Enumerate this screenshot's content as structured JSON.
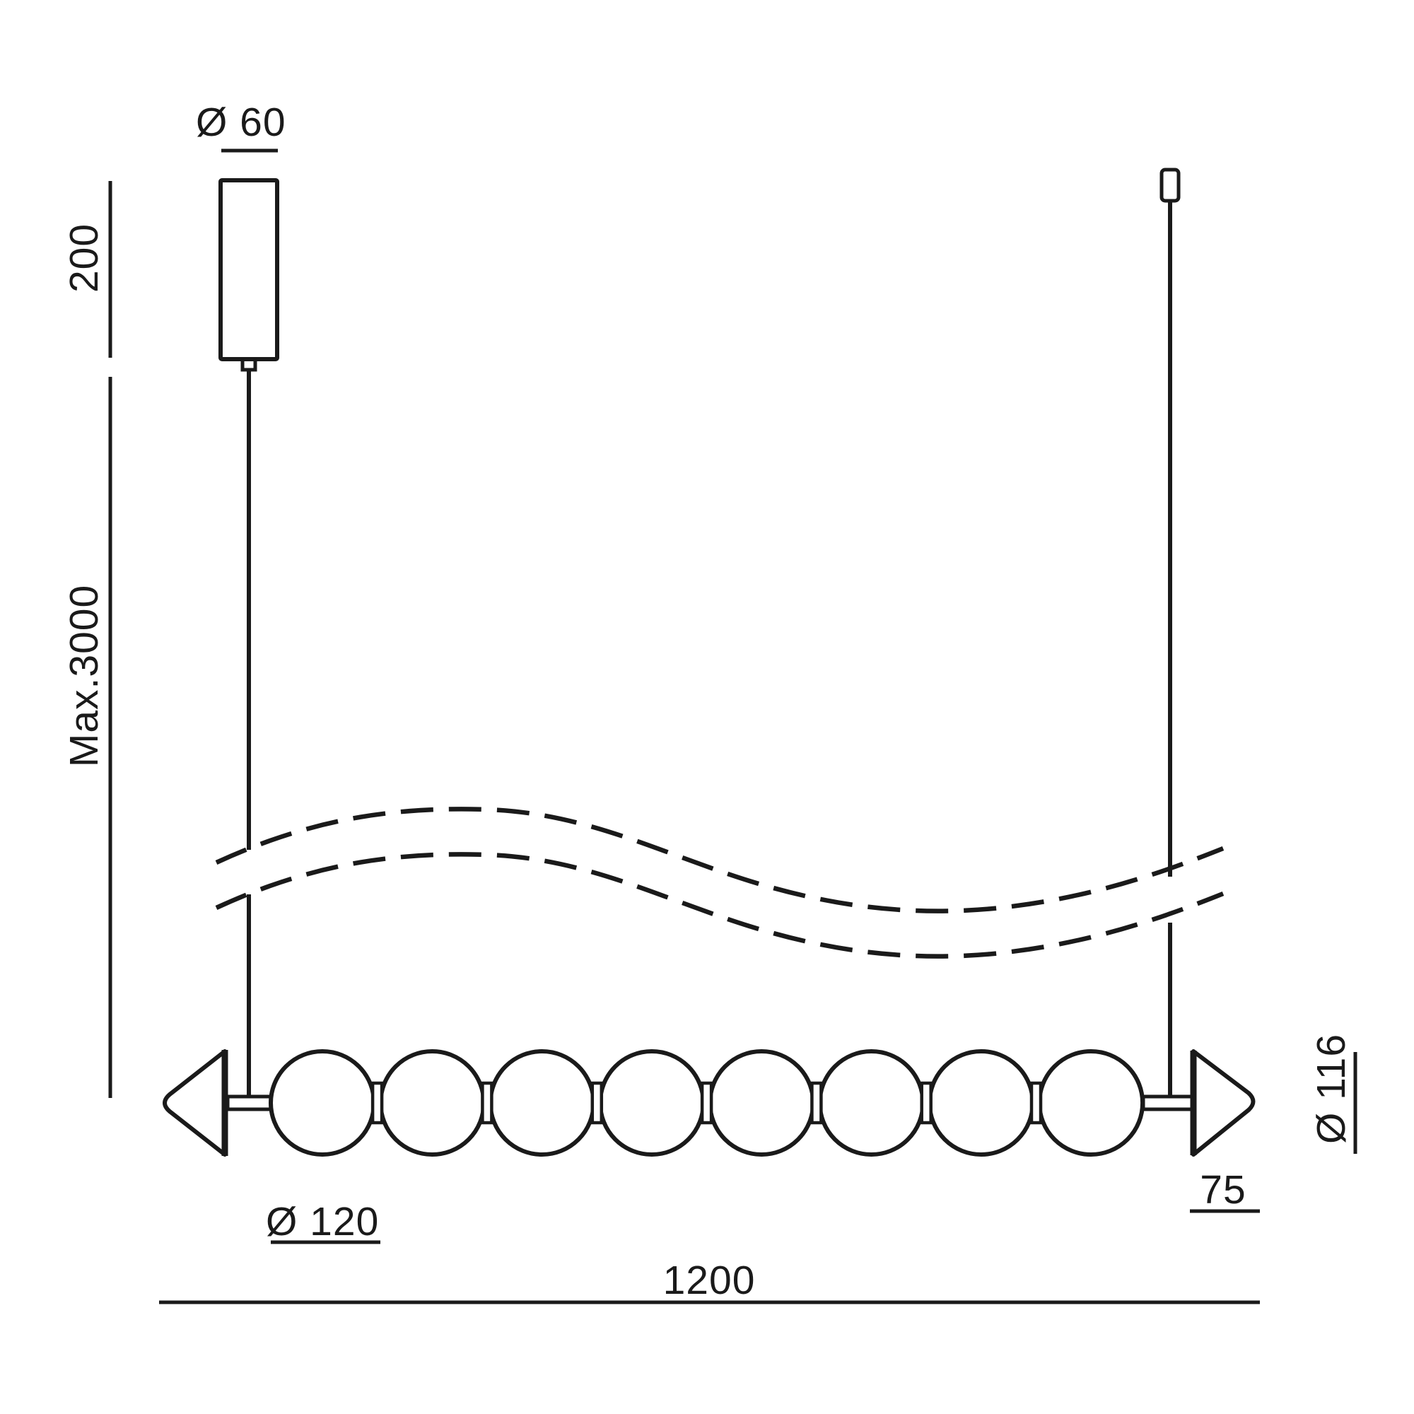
{
  "meta": {
    "drawing_type": "pendant-lamp-dimension-diagram",
    "background_color": "#ffffff",
    "line_color": "#1a1a1a"
  },
  "dimensions": {
    "canopy_diameter": "Ø 60",
    "canopy_height": "200",
    "max_suspension": "Max.3000",
    "sphere_diameter": "Ø 120",
    "total_length": "1200",
    "cone_length": "75",
    "cone_diameter": "Ø 116"
  },
  "structure": {
    "sphere_count": 8,
    "connector_count": 7
  }
}
